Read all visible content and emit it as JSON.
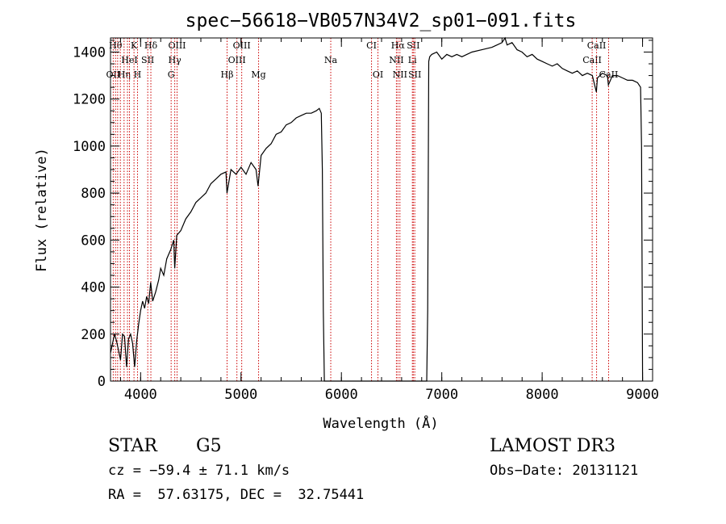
{
  "chart_data": {
    "type": "line",
    "title": "spec−56618−VB057N34V2_sp01−091.fits",
    "xlabel": "Wavelength (Å)",
    "ylabel": "Flux (relative)",
    "xlim": [
      3700,
      9100
    ],
    "ylim": [
      0,
      1460
    ],
    "x_ticks": [
      4000,
      5000,
      6000,
      7000,
      8000,
      9000
    ],
    "y_ticks": [
      0,
      200,
      400,
      600,
      800,
      1000,
      1200,
      1400
    ],
    "grid": false,
    "series": [
      {
        "x": [
          3700,
          3720,
          3740,
          3760,
          3780,
          3800,
          3820,
          3840,
          3860,
          3880,
          3900,
          3920,
          3940,
          3960,
          3980,
          4000,
          4020,
          4040,
          4060,
          4080,
          4100,
          4120,
          4150,
          4180,
          4200,
          4230,
          4260,
          4300,
          4330,
          4340,
          4360,
          4400,
          4450,
          4500,
          4550,
          4600,
          4650,
          4700,
          4750,
          4800,
          4850,
          4860,
          4900,
          4950,
          5000,
          5050,
          5100,
          5150,
          5170,
          5200,
          5250,
          5300,
          5350,
          5400,
          5450,
          5500,
          5550,
          5600,
          5650,
          5700,
          5750,
          5780,
          5800,
          5810,
          5820,
          5830,
          5840,
          5850,
          5860,
          5870,
          5880,
          5890,
          5900,
          5910,
          5920,
          5930,
          5940,
          5950,
          6000,
          6100,
          6200,
          6300,
          6400,
          6500,
          6600,
          6700,
          6800,
          6850,
          6860,
          6870,
          6880,
          6900,
          6950,
          7000,
          7050,
          7100,
          7150,
          7200,
          7300,
          7400,
          7500,
          7550,
          7600,
          7630,
          7650,
          7700,
          7750,
          7800,
          7850,
          7900,
          7950,
          8000,
          8050,
          8100,
          8150,
          8200,
          8250,
          8300,
          8350,
          8400,
          8450,
          8500,
          8540,
          8550,
          8600,
          8650,
          8660,
          8700,
          8750,
          8800,
          8850,
          8900,
          8950,
          8980,
          8990,
          9000
        ],
        "y": [
          120,
          160,
          200,
          170,
          130,
          90,
          200,
          190,
          60,
          180,
          200,
          160,
          60,
          170,
          240,
          300,
          340,
          310,
          360,
          330,
          420,
          340,
          380,
          430,
          480,
          450,
          520,
          560,
          600,
          480,
          620,
          640,
          690,
          720,
          760,
          780,
          800,
          840,
          860,
          880,
          890,
          800,
          900,
          880,
          910,
          880,
          930,
          900,
          830,
          960,
          990,
          1010,
          1050,
          1060,
          1090,
          1100,
          1120,
          1130,
          1140,
          1140,
          1150,
          1160,
          1140,
          900,
          300,
          0,
          0,
          0,
          0,
          0,
          0,
          0,
          0,
          0,
          0,
          0,
          0,
          0,
          0,
          0,
          0,
          0,
          0,
          0,
          0,
          0,
          0,
          0,
          300,
          1360,
          1380,
          1390,
          1400,
          1370,
          1390,
          1380,
          1390,
          1380,
          1400,
          1410,
          1420,
          1430,
          1440,
          1460,
          1430,
          1440,
          1410,
          1400,
          1380,
          1390,
          1370,
          1360,
          1350,
          1340,
          1350,
          1330,
          1320,
          1310,
          1320,
          1300,
          1310,
          1300,
          1230,
          1290,
          1310,
          1300,
          1260,
          1300,
          1300,
          1290,
          1280,
          1280,
          1270,
          1250,
          1000,
          0
        ]
      }
    ],
    "lines": [
      {
        "x": 3727,
        "label": "OII",
        "row": 2
      },
      {
        "x": 3750,
        "label": "Hθ",
        "row": 0
      },
      {
        "x": 3771,
        "label": "",
        "row": 0
      },
      {
        "x": 3798,
        "label": "",
        "row": 0
      },
      {
        "x": 3835,
        "label": "Hη",
        "row": 2
      },
      {
        "x": 3869,
        "label": "",
        "row": 0
      },
      {
        "x": 3889,
        "label": "HeI",
        "row": 1
      },
      {
        "x": 3934,
        "label": "K",
        "row": 0
      },
      {
        "x": 3969,
        "label": "H",
        "row": 2
      },
      {
        "x": 4071,
        "label": "SII",
        "row": 1
      },
      {
        "x": 4102,
        "label": "Hδ",
        "row": 0
      },
      {
        "x": 4304,
        "label": "G",
        "row": 2
      },
      {
        "x": 4340,
        "label": "Hγ",
        "row": 1
      },
      {
        "x": 4363,
        "label": "OIII",
        "row": 0
      },
      {
        "x": 4861,
        "label": "Hβ",
        "row": 2
      },
      {
        "x": 4959,
        "label": "OIII",
        "row": 1
      },
      {
        "x": 5007,
        "label": "OIII",
        "row": 0
      },
      {
        "x": 5175,
        "label": "Mg",
        "row": 2
      },
      {
        "x": 5894,
        "label": "Na",
        "row": 1
      },
      {
        "x": 6300,
        "label": "CI",
        "row": 0
      },
      {
        "x": 6364,
        "label": "OI",
        "row": 2
      },
      {
        "x": 6548,
        "label": "NII",
        "row": 1
      },
      {
        "x": 6563,
        "label": "Hα",
        "row": 0
      },
      {
        "x": 6583,
        "label": "NII",
        "row": 2
      },
      {
        "x": 6707,
        "label": "Li",
        "row": 1
      },
      {
        "x": 6716,
        "label": "SII",
        "row": 0
      },
      {
        "x": 6731,
        "label": "SII",
        "row": 2
      },
      {
        "x": 8498,
        "label": "CaII",
        "row": 1
      },
      {
        "x": 8542,
        "label": "CaII",
        "row": 0
      },
      {
        "x": 8662,
        "label": "CaII",
        "row": 2
      }
    ]
  },
  "info": {
    "class_label": "STAR",
    "subclass_label": "G5",
    "survey": "LAMOST DR3",
    "redshift": "cz = −59.4 ± 71.1 km/s",
    "obs_date": "Obs−Date: 20131121",
    "coords": "RA =  57.63175, DEC =  32.75441"
  }
}
